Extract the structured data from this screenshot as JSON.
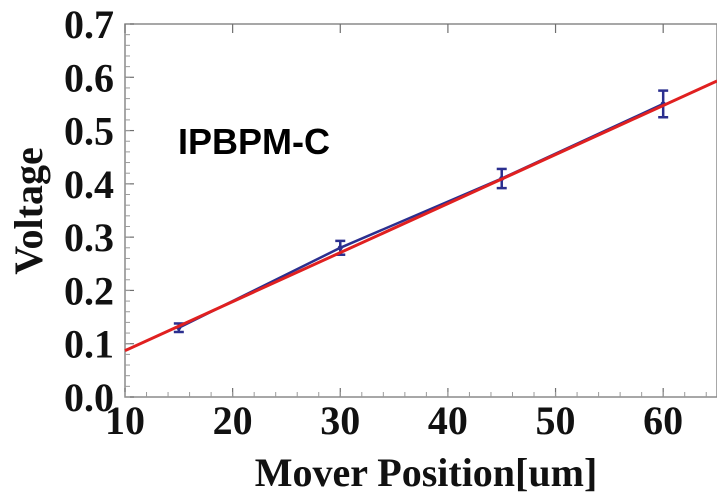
{
  "chart_data": {
    "type": "scatter",
    "title": "",
    "annotation": "IPBPM-C",
    "xlabel": "Mover Position[um]",
    "ylabel": "Voltage",
    "xlim": [
      10,
      65
    ],
    "ylim": [
      0.0,
      0.7
    ],
    "x_ticks": [
      10,
      20,
      30,
      40,
      50,
      60
    ],
    "x_tick_labels": [
      "10",
      "20",
      "30",
      "40",
      "50",
      "60"
    ],
    "y_ticks": [
      0.0,
      0.1,
      0.2,
      0.3,
      0.4,
      0.5,
      0.6,
      0.7
    ],
    "y_tick_labels": [
      "0.0",
      "0.1",
      "0.2",
      "0.3",
      "0.4",
      "0.5",
      "0.6",
      "0.7"
    ],
    "grid": false,
    "series": [
      {
        "kind": "points-with-error-bars-connected",
        "color": "#2b2f8f",
        "x": [
          15,
          30,
          45,
          60
        ],
        "y": [
          0.13,
          0.28,
          0.41,
          0.55
        ],
        "yerr": [
          0.008,
          0.013,
          0.018,
          0.025
        ]
      },
      {
        "kind": "fit-line",
        "color": "#e02020",
        "x": [
          10,
          65
        ],
        "y": [
          0.087,
          0.593
        ]
      }
    ]
  }
}
